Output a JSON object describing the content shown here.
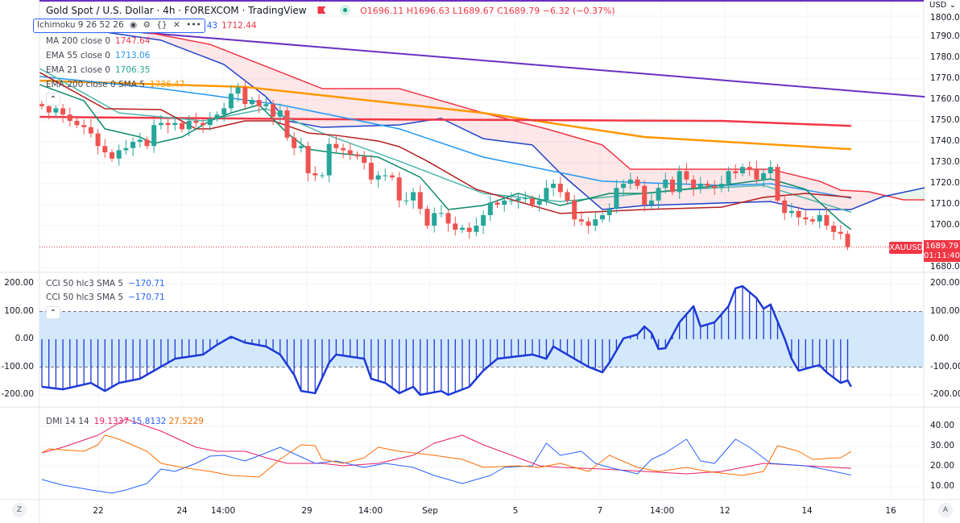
{
  "header": {
    "title": "Gold Spot / U.S. Dollar · 4h · FOREXCOM · TradingView",
    "ohlc": "O1696.11 H1696.63 L1689.67 C1689.79 −6.32 (−0.37%)"
  },
  "indicators": {
    "ichimoku": {
      "label": "Ichimoku 9 26 52 26",
      "value_partial": "43",
      "value": "1712.44"
    },
    "ma200": {
      "label": "MA 200 close 0",
      "value": "1747.64"
    },
    "ema55": {
      "label": "EMA 55 close 0",
      "value": "1713.06"
    },
    "ema21": {
      "label": "EMA 21 close 0",
      "value": "1706.35"
    },
    "ema200": {
      "label": "EMA 200 close 0 SMA 5",
      "value": "1736.47"
    },
    "cci1": {
      "label": "CCI 50 hlc3 SMA 5",
      "value": "−170.71"
    },
    "cci2": {
      "label": "CCI 50 hlc3 SMA 5",
      "value": "−170.71"
    },
    "dmi": {
      "label": "DMI 14 14",
      "v1": "19.1337",
      "v2": "15.8132",
      "v3": "27.5229"
    }
  },
  "price_axis": {
    "currency": "USD",
    "labels": [
      "1800.00",
      "1790.00",
      "1780.00",
      "1770.00",
      "1760.00",
      "1750.00",
      "1740.00",
      "1730.00",
      "1720.00",
      "1710.00",
      "1700.00",
      "1680.00"
    ],
    "symbol_tag": "XAUUSD",
    "last_price": "1689.79",
    "countdown": "01:11:40"
  },
  "cci_axis": [
    "200.00",
    "100.00",
    "0.00",
    "-100.00",
    "-200.00"
  ],
  "dmi_axis": [
    "40.00",
    "30.00",
    "20.00",
    "10.00"
  ],
  "time_axis": [
    "22",
    "24",
    "14:00",
    "29",
    "14:00",
    "Sep",
    "5",
    "7",
    "14:00",
    "12",
    "14",
    "16"
  ],
  "bottom": {
    "left_btn": "Z",
    "right_btn": "A"
  },
  "colors": {
    "up": "#26a69a",
    "down": "#ef5350",
    "purple": "#6a2fc0",
    "orange": "#ff9800",
    "ma200": "#f23645",
    "ema55": "#2196f3",
    "ema21": "#4db6ac",
    "tenkan": "#0c8a6a",
    "kijun": "#b71c1c",
    "spanA": "#1e40c8",
    "spanB": "#f23645"
  },
  "chart_data": {
    "type": "candlestick",
    "timeframe": "4h",
    "closes": [
      1757,
      1754,
      1756,
      1753,
      1750,
      1748,
      1747,
      1744,
      1738,
      1735,
      1732,
      1736,
      1737,
      1740,
      1741,
      1738,
      1748,
      1749,
      1748,
      1749,
      1746,
      1750,
      1749,
      1748,
      1751,
      1753,
      1756,
      1763,
      1766,
      1758,
      1760,
      1757,
      1758,
      1752,
      1755,
      1742,
      1737,
      1738,
      1725,
      1724,
      1724,
      1739,
      1737,
      1736,
      1734,
      1733,
      1730,
      1722,
      1724,
      1724,
      1723,
      1712,
      1712,
      1716,
      1708,
      1700,
      1706,
      1706,
      1701,
      1698,
      1699,
      1697,
      1700,
      1705,
      1711,
      1710,
      1712,
      1712,
      1713,
      1713,
      1710,
      1712,
      1718,
      1720,
      1716,
      1712,
      1703,
      1702,
      1700,
      1703,
      1705,
      1708,
      1718,
      1720,
      1722,
      1719,
      1710,
      1712,
      1718,
      1722,
      1716,
      1726,
      1722,
      1718,
      1720,
      1719,
      1718,
      1720,
      1726,
      1725,
      1728,
      1727,
      1722,
      1725,
      1728,
      1712,
      1706,
      1707,
      1704,
      1703,
      1702,
      1705,
      1700,
      1697,
      1696.11,
      1689.79
    ],
    "lines": {
      "trendline": [
        [
          -0.3,
          1796.2
        ],
        [
          126,
          1761.5
        ]
      ],
      "ema200": [
        [
          -0.3,
          1769.2
        ],
        [
          29,
          1766.2
        ],
        [
          63,
          1753.8
        ],
        [
          86,
          1742.3
        ],
        [
          115.5,
          1736.5
        ]
      ],
      "ma200": [
        [
          -0.3,
          1751.9
        ],
        [
          40,
          1750.8
        ],
        [
          97,
          1750
        ],
        [
          115.5,
          1747.6
        ]
      ],
      "ema55": [
        [
          -0.3,
          1771.2
        ],
        [
          17,
          1765.4
        ],
        [
          34,
          1757.7
        ],
        [
          51,
          1746.2
        ],
        [
          63,
          1732.7
        ],
        [
          80,
          1721.2
        ],
        [
          97,
          1719.2
        ],
        [
          104,
          1720
        ],
        [
          115.5,
          1713.1
        ]
      ],
      "ema21": [
        [
          -0.3,
          1775
        ],
        [
          11,
          1753.8
        ],
        [
          23,
          1750
        ],
        [
          32,
          1755.8
        ],
        [
          40,
          1744.2
        ],
        [
          51,
          1730.8
        ],
        [
          63,
          1715.4
        ],
        [
          74,
          1711.5
        ],
        [
          92,
          1717.3
        ],
        [
          103,
          1719.2
        ],
        [
          115.5,
          1706.4
        ]
      ],
      "tenkan": [
        [
          -0.3,
          1767.3
        ],
        [
          6,
          1759.6
        ],
        [
          9,
          1746.2
        ],
        [
          14,
          1742.3
        ],
        [
          16,
          1739.2
        ],
        [
          20,
          1742.3
        ],
        [
          24,
          1750
        ],
        [
          27,
          1753.8
        ],
        [
          31,
          1757.7
        ],
        [
          35,
          1744.2
        ],
        [
          38,
          1736.5
        ],
        [
          42,
          1734.6
        ],
        [
          48,
          1732.7
        ],
        [
          54,
          1723.1
        ],
        [
          58,
          1707.7
        ],
        [
          63,
          1709.6
        ],
        [
          68,
          1715.4
        ],
        [
          74,
          1709.6
        ],
        [
          81,
          1715.4
        ],
        [
          86,
          1715.4
        ],
        [
          97,
          1719.2
        ],
        [
          104,
          1722.3
        ],
        [
          109,
          1717.3
        ],
        [
          114,
          1701.9
        ],
        [
          115.5,
          1698.1
        ]
      ],
      "kijun": [
        [
          -0.3,
          1773.1
        ],
        [
          9,
          1755.8
        ],
        [
          17,
          1755.4
        ],
        [
          22,
          1746.2
        ],
        [
          24,
          1746.2
        ],
        [
          29,
          1750
        ],
        [
          33,
          1750
        ],
        [
          38,
          1744.2
        ],
        [
          42,
          1743.1
        ],
        [
          48,
          1740.4
        ],
        [
          51,
          1737.7
        ],
        [
          55,
          1730.8
        ],
        [
          62,
          1717.3
        ],
        [
          68,
          1711.5
        ],
        [
          74,
          1705.8
        ],
        [
          86,
          1707.7
        ],
        [
          97,
          1708.8
        ],
        [
          103,
          1713.5
        ],
        [
          109,
          1715.4
        ],
        [
          115.5,
          1713.5
        ]
      ],
      "spanA": [
        [
          -0.3,
          1796.9
        ],
        [
          17,
          1788.5
        ],
        [
          26,
          1776.9
        ],
        [
          32,
          1761.5
        ],
        [
          35,
          1750
        ],
        [
          40,
          1746.9
        ],
        [
          51,
          1748.1
        ],
        [
          57,
          1751.2
        ],
        [
          63,
          1741.5
        ],
        [
          70,
          1738.5
        ],
        [
          74,
          1725
        ],
        [
          80,
          1707.7
        ],
        [
          86,
          1709.6
        ],
        [
          97,
          1710.8
        ],
        [
          104,
          1711.5
        ],
        [
          109,
          1707.7
        ],
        [
          115.5,
          1707.7
        ],
        [
          120,
          1713.8
        ],
        [
          126,
          1718.1
        ]
      ],
      "spanB": [
        [
          15,
          1792.3
        ],
        [
          24,
          1786.5
        ],
        [
          40,
          1765.4
        ],
        [
          51,
          1765.4
        ],
        [
          63,
          1753.8
        ],
        [
          72,
          1746.2
        ],
        [
          80,
          1738.5
        ],
        [
          84,
          1726.9
        ],
        [
          104,
          1726.9
        ],
        [
          111,
          1721.2
        ],
        [
          114,
          1716.9
        ],
        [
          118,
          1716.2
        ],
        [
          123,
          1712.3
        ],
        [
          126,
          1712.3
        ]
      ]
    },
    "cci": [
      [
        0,
        -171
      ],
      [
        3,
        -180
      ],
      [
        7,
        -157
      ],
      [
        9,
        -186
      ],
      [
        11,
        -157
      ],
      [
        14,
        -142
      ],
      [
        16,
        -113
      ],
      [
        19,
        -70
      ],
      [
        23,
        -55
      ],
      [
        25,
        -20
      ],
      [
        27,
        9
      ],
      [
        29,
        -12
      ],
      [
        32,
        -26
      ],
      [
        34,
        -55
      ],
      [
        36,
        -128
      ],
      [
        37,
        -186
      ],
      [
        39,
        -194
      ],
      [
        41,
        -84
      ],
      [
        42,
        -55
      ],
      [
        46,
        -70
      ],
      [
        47,
        -142
      ],
      [
        49,
        -157
      ],
      [
        51,
        -194
      ],
      [
        53,
        -171
      ],
      [
        54,
        -200
      ],
      [
        57,
        -186
      ],
      [
        58,
        -200
      ],
      [
        61,
        -171
      ],
      [
        63,
        -113
      ],
      [
        65,
        -70
      ],
      [
        70,
        -55
      ],
      [
        72,
        -70
      ],
      [
        73,
        -26
      ],
      [
        76,
        -70
      ],
      [
        78,
        -99
      ],
      [
        80,
        -119
      ],
      [
        81,
        -84
      ],
      [
        83,
        3
      ],
      [
        85,
        17
      ],
      [
        86,
        46
      ],
      [
        87,
        23
      ],
      [
        88,
        -35
      ],
      [
        89,
        -32
      ],
      [
        91,
        61
      ],
      [
        93,
        119
      ],
      [
        94,
        46
      ],
      [
        96,
        61
      ],
      [
        98,
        119
      ],
      [
        99,
        183
      ],
      [
        100,
        191
      ],
      [
        102,
        148
      ],
      [
        103,
        110
      ],
      [
        104,
        125
      ],
      [
        106,
        3
      ],
      [
        107,
        -70
      ],
      [
        108,
        -113
      ],
      [
        110,
        -99
      ],
      [
        111,
        -93
      ],
      [
        112,
        -119
      ],
      [
        114,
        -157
      ],
      [
        115,
        -148
      ],
      [
        115.5,
        -170.71
      ]
    ],
    "cci_band": [
      -100,
      100
    ],
    "dmi": {
      "plus": [
        [
          0,
          26.8
        ],
        [
          3,
          29.6
        ],
        [
          8,
          35.6
        ],
        [
          12,
          43.6
        ],
        [
          17,
          37.6
        ],
        [
          22,
          29.6
        ],
        [
          25,
          27.6
        ],
        [
          29,
          27.6
        ],
        [
          32,
          24.4
        ],
        [
          35,
          21.6
        ],
        [
          40,
          21.6
        ],
        [
          43,
          20.4
        ],
        [
          48,
          21.6
        ],
        [
          53,
          25.6
        ],
        [
          56,
          31.6
        ],
        [
          60,
          35.6
        ],
        [
          63,
          30.8
        ],
        [
          68,
          24.4
        ],
        [
          71,
          20.4
        ],
        [
          74,
          19.6
        ],
        [
          80,
          18.8
        ],
        [
          86,
          17.6
        ],
        [
          92,
          16.4
        ],
        [
          97,
          17.6
        ],
        [
          103,
          21.6
        ],
        [
          109,
          20.4
        ],
        [
          115.5,
          19.13
        ]
      ],
      "minus": [
        [
          0,
          13.6
        ],
        [
          3,
          10.8
        ],
        [
          7,
          8.4
        ],
        [
          10,
          6.8
        ],
        [
          12,
          8.4
        ],
        [
          15,
          11.6
        ],
        [
          17,
          18.8
        ],
        [
          19,
          17.6
        ],
        [
          22,
          21.6
        ],
        [
          24,
          25.2
        ],
        [
          26,
          25.6
        ],
        [
          29,
          22.8
        ],
        [
          32,
          26.8
        ],
        [
          34,
          29.6
        ],
        [
          37,
          24.8
        ],
        [
          39,
          21.6
        ],
        [
          42,
          22.8
        ],
        [
          46,
          19.6
        ],
        [
          49,
          21.6
        ],
        [
          53,
          19.6
        ],
        [
          56,
          15.6
        ],
        [
          60,
          11.6
        ],
        [
          62,
          13.6
        ],
        [
          64,
          15.6
        ],
        [
          66,
          19.6
        ],
        [
          70,
          20.4
        ],
        [
          72,
          31.6
        ],
        [
          74,
          25.6
        ],
        [
          77,
          27.6
        ],
        [
          79,
          21.6
        ],
        [
          81,
          19.6
        ],
        [
          85,
          16.4
        ],
        [
          87,
          23.6
        ],
        [
          89,
          26.8
        ],
        [
          92,
          33.6
        ],
        [
          94,
          22.8
        ],
        [
          96,
          21.6
        ],
        [
          99,
          33.6
        ],
        [
          101,
          29.6
        ],
        [
          104,
          21.6
        ],
        [
          109,
          20.4
        ],
        [
          112,
          18.4
        ],
        [
          115.5,
          15.81
        ]
      ],
      "adx": [
        [
          0,
          26.8
        ],
        [
          1,
          28.8
        ],
        [
          6,
          27.6
        ],
        [
          8,
          30.8
        ],
        [
          9,
          35.6
        ],
        [
          11,
          33.6
        ],
        [
          15,
          27.6
        ],
        [
          17,
          21.6
        ],
        [
          20,
          19.6
        ],
        [
          24,
          17.6
        ],
        [
          27,
          15.6
        ],
        [
          31,
          14.8
        ],
        [
          34,
          23.6
        ],
        [
          37,
          30.8
        ],
        [
          39,
          30.4
        ],
        [
          40,
          23.6
        ],
        [
          43,
          21.6
        ],
        [
          46,
          24.4
        ],
        [
          48,
          29.6
        ],
        [
          51,
          27.6
        ],
        [
          56,
          25.6
        ],
        [
          60,
          23.6
        ],
        [
          63,
          19.6
        ],
        [
          68,
          20.4
        ],
        [
          71,
          19.6
        ],
        [
          74,
          21.6
        ],
        [
          78,
          17.6
        ],
        [
          81,
          25.6
        ],
        [
          85,
          19.6
        ],
        [
          88,
          17.6
        ],
        [
          92,
          19.6
        ],
        [
          95,
          17.6
        ],
        [
          100,
          15.6
        ],
        [
          103,
          17.6
        ],
        [
          105,
          30.4
        ],
        [
          108,
          27.6
        ],
        [
          110,
          23.6
        ],
        [
          114,
          24.4
        ],
        [
          115.5,
          27.52
        ]
      ]
    }
  }
}
